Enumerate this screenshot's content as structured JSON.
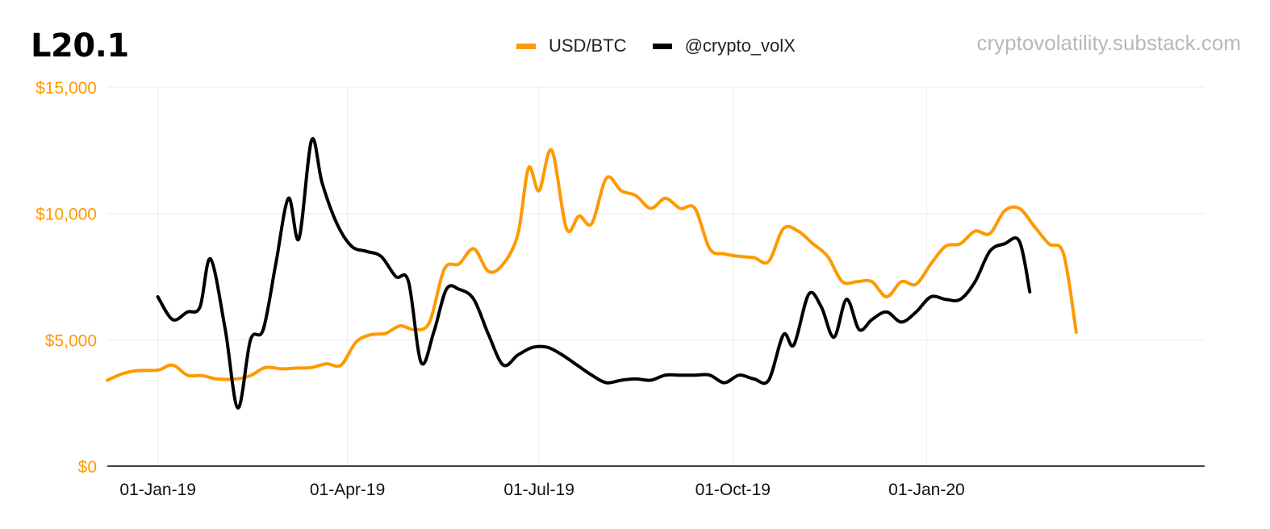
{
  "header": {
    "title": "L20.1",
    "watermark": "cryptovolatility.substack.com"
  },
  "chart_data": {
    "type": "line",
    "title": "L20.1",
    "xlabel": "",
    "ylabel": "",
    "ylim": [
      0,
      15000
    ],
    "xlim": [
      "2018-12-08",
      "2020-05-12"
    ],
    "y_ticks": [
      "$0",
      "$5,000",
      "$10,000",
      "$15,000"
    ],
    "y_tick_values": [
      0,
      5000,
      10000,
      15000
    ],
    "x_ticks": [
      "01-Jan-19",
      "01-Apr-19",
      "01-Jul-19",
      "01-Oct-19",
      "01-Jan-20"
    ],
    "x_tick_dates": [
      "2019-01-01",
      "2019-04-01",
      "2019-07-01",
      "2019-10-01",
      "2020-01-01"
    ],
    "grid": true,
    "legend_position": "top-center",
    "series": [
      {
        "name": "USD/BTC",
        "color": "#ff9900",
        "points": [
          [
            "2018-12-08",
            3400
          ],
          [
            "2018-12-15",
            3650
          ],
          [
            "2018-12-22",
            3780
          ],
          [
            "2019-01-01",
            3800
          ],
          [
            "2019-01-08",
            4000
          ],
          [
            "2019-01-15",
            3600
          ],
          [
            "2019-01-22",
            3580
          ],
          [
            "2019-01-29",
            3450
          ],
          [
            "2019-02-07",
            3450
          ],
          [
            "2019-02-14",
            3580
          ],
          [
            "2019-02-21",
            3900
          ],
          [
            "2019-03-01",
            3850
          ],
          [
            "2019-03-08",
            3880
          ],
          [
            "2019-03-15",
            3900
          ],
          [
            "2019-03-22",
            4050
          ],
          [
            "2019-03-29",
            4000
          ],
          [
            "2019-04-05",
            4900
          ],
          [
            "2019-04-12",
            5200
          ],
          [
            "2019-04-19",
            5250
          ],
          [
            "2019-04-26",
            5550
          ],
          [
            "2019-05-03",
            5400
          ],
          [
            "2019-05-10",
            5700
          ],
          [
            "2019-05-17",
            7800
          ],
          [
            "2019-05-24",
            8000
          ],
          [
            "2019-05-31",
            8600
          ],
          [
            "2019-06-07",
            7700
          ],
          [
            "2019-06-14",
            8000
          ],
          [
            "2019-06-21",
            9200
          ],
          [
            "2019-06-26",
            11800
          ],
          [
            "2019-07-01",
            10900
          ],
          [
            "2019-07-07",
            12500
          ],
          [
            "2019-07-14",
            9400
          ],
          [
            "2019-07-20",
            9900
          ],
          [
            "2019-07-26",
            9600
          ],
          [
            "2019-08-02",
            11400
          ],
          [
            "2019-08-09",
            10900
          ],
          [
            "2019-08-16",
            10700
          ],
          [
            "2019-08-23",
            10200
          ],
          [
            "2019-08-30",
            10600
          ],
          [
            "2019-09-06",
            10200
          ],
          [
            "2019-09-13",
            10200
          ],
          [
            "2019-09-20",
            8600
          ],
          [
            "2019-09-27",
            8400
          ],
          [
            "2019-10-04",
            8300
          ],
          [
            "2019-10-11",
            8250
          ],
          [
            "2019-10-18",
            8100
          ],
          [
            "2019-10-25",
            9400
          ],
          [
            "2019-11-01",
            9300
          ],
          [
            "2019-11-08",
            8800
          ],
          [
            "2019-11-15",
            8300
          ],
          [
            "2019-11-22",
            7300
          ],
          [
            "2019-11-29",
            7300
          ],
          [
            "2019-12-06",
            7300
          ],
          [
            "2019-12-13",
            6700
          ],
          [
            "2019-12-20",
            7300
          ],
          [
            "2019-12-27",
            7200
          ],
          [
            "2020-01-03",
            8000
          ],
          [
            "2020-01-10",
            8700
          ],
          [
            "2020-01-17",
            8800
          ],
          [
            "2020-01-24",
            9300
          ],
          [
            "2020-01-31",
            9200
          ],
          [
            "2020-02-07",
            10100
          ],
          [
            "2020-02-14",
            10200
          ],
          [
            "2020-02-21",
            9500
          ],
          [
            "2020-02-28",
            8800
          ],
          [
            "2020-03-06",
            8400
          ],
          [
            "2020-03-12",
            5300
          ]
        ]
      },
      {
        "name": "@crypto_volX",
        "color": "#000000",
        "points": [
          [
            "2019-01-01",
            6700
          ],
          [
            "2019-01-08",
            5800
          ],
          [
            "2019-01-15",
            6100
          ],
          [
            "2019-01-21",
            6300
          ],
          [
            "2019-01-26",
            8200
          ],
          [
            "2019-02-02",
            5400
          ],
          [
            "2019-02-08",
            2300
          ],
          [
            "2019-02-14",
            5000
          ],
          [
            "2019-02-20",
            5400
          ],
          [
            "2019-02-26",
            8000
          ],
          [
            "2019-03-04",
            10600
          ],
          [
            "2019-03-09",
            9000
          ],
          [
            "2019-03-15",
            12900
          ],
          [
            "2019-03-20",
            11200
          ],
          [
            "2019-03-27",
            9600
          ],
          [
            "2019-04-03",
            8700
          ],
          [
            "2019-04-10",
            8500
          ],
          [
            "2019-04-17",
            8300
          ],
          [
            "2019-04-24",
            7500
          ],
          [
            "2019-04-30",
            7300
          ],
          [
            "2019-05-06",
            4100
          ],
          [
            "2019-05-12",
            5300
          ],
          [
            "2019-05-18",
            7000
          ],
          [
            "2019-05-24",
            7000
          ],
          [
            "2019-05-31",
            6600
          ],
          [
            "2019-06-07",
            5200
          ],
          [
            "2019-06-14",
            4000
          ],
          [
            "2019-06-21",
            4400
          ],
          [
            "2019-06-28",
            4700
          ],
          [
            "2019-07-05",
            4700
          ],
          [
            "2019-07-12",
            4400
          ],
          [
            "2019-07-19",
            4000
          ],
          [
            "2019-07-26",
            3600
          ],
          [
            "2019-08-02",
            3300
          ],
          [
            "2019-08-09",
            3400
          ],
          [
            "2019-08-16",
            3450
          ],
          [
            "2019-08-23",
            3400
          ],
          [
            "2019-08-30",
            3600
          ],
          [
            "2019-09-06",
            3600
          ],
          [
            "2019-09-13",
            3600
          ],
          [
            "2019-09-20",
            3600
          ],
          [
            "2019-09-27",
            3300
          ],
          [
            "2019-10-04",
            3600
          ],
          [
            "2019-10-11",
            3450
          ],
          [
            "2019-10-18",
            3400
          ],
          [
            "2019-10-25",
            5200
          ],
          [
            "2019-10-30",
            4800
          ],
          [
            "2019-11-06",
            6800
          ],
          [
            "2019-11-12",
            6300
          ],
          [
            "2019-11-18",
            5100
          ],
          [
            "2019-11-24",
            6600
          ],
          [
            "2019-11-30",
            5400
          ],
          [
            "2019-12-06",
            5800
          ],
          [
            "2019-12-13",
            6100
          ],
          [
            "2019-12-20",
            5700
          ],
          [
            "2019-12-27",
            6100
          ],
          [
            "2020-01-03",
            6700
          ],
          [
            "2020-01-10",
            6600
          ],
          [
            "2020-01-17",
            6600
          ],
          [
            "2020-01-24",
            7300
          ],
          [
            "2020-01-31",
            8500
          ],
          [
            "2020-02-07",
            8800
          ],
          [
            "2020-02-14",
            8900
          ],
          [
            "2020-02-19",
            6900
          ]
        ]
      }
    ]
  }
}
